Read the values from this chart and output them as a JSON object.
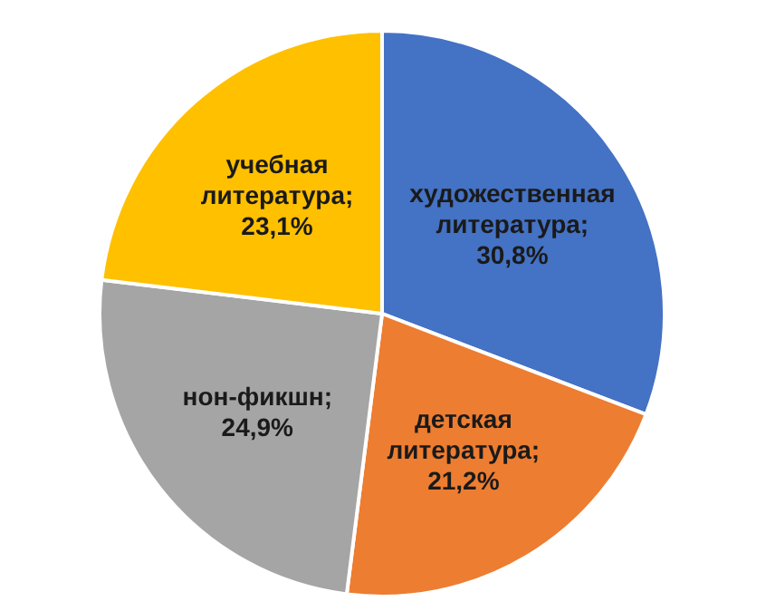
{
  "chart_data": {
    "type": "pie",
    "categories": [
      "художественная литература",
      "детская литература",
      "нон-фикшн",
      "учебная литература"
    ],
    "values": [
      30.8,
      21.2,
      24.9,
      23.1
    ],
    "colors": [
      "#4472c4",
      "#ed7d31",
      "#a5a5a5",
      "#ffc000"
    ],
    "value_labels": [
      "; 30,8%",
      "; 21,2%",
      "; 24,9%",
      "; 23,1%"
    ]
  }
}
